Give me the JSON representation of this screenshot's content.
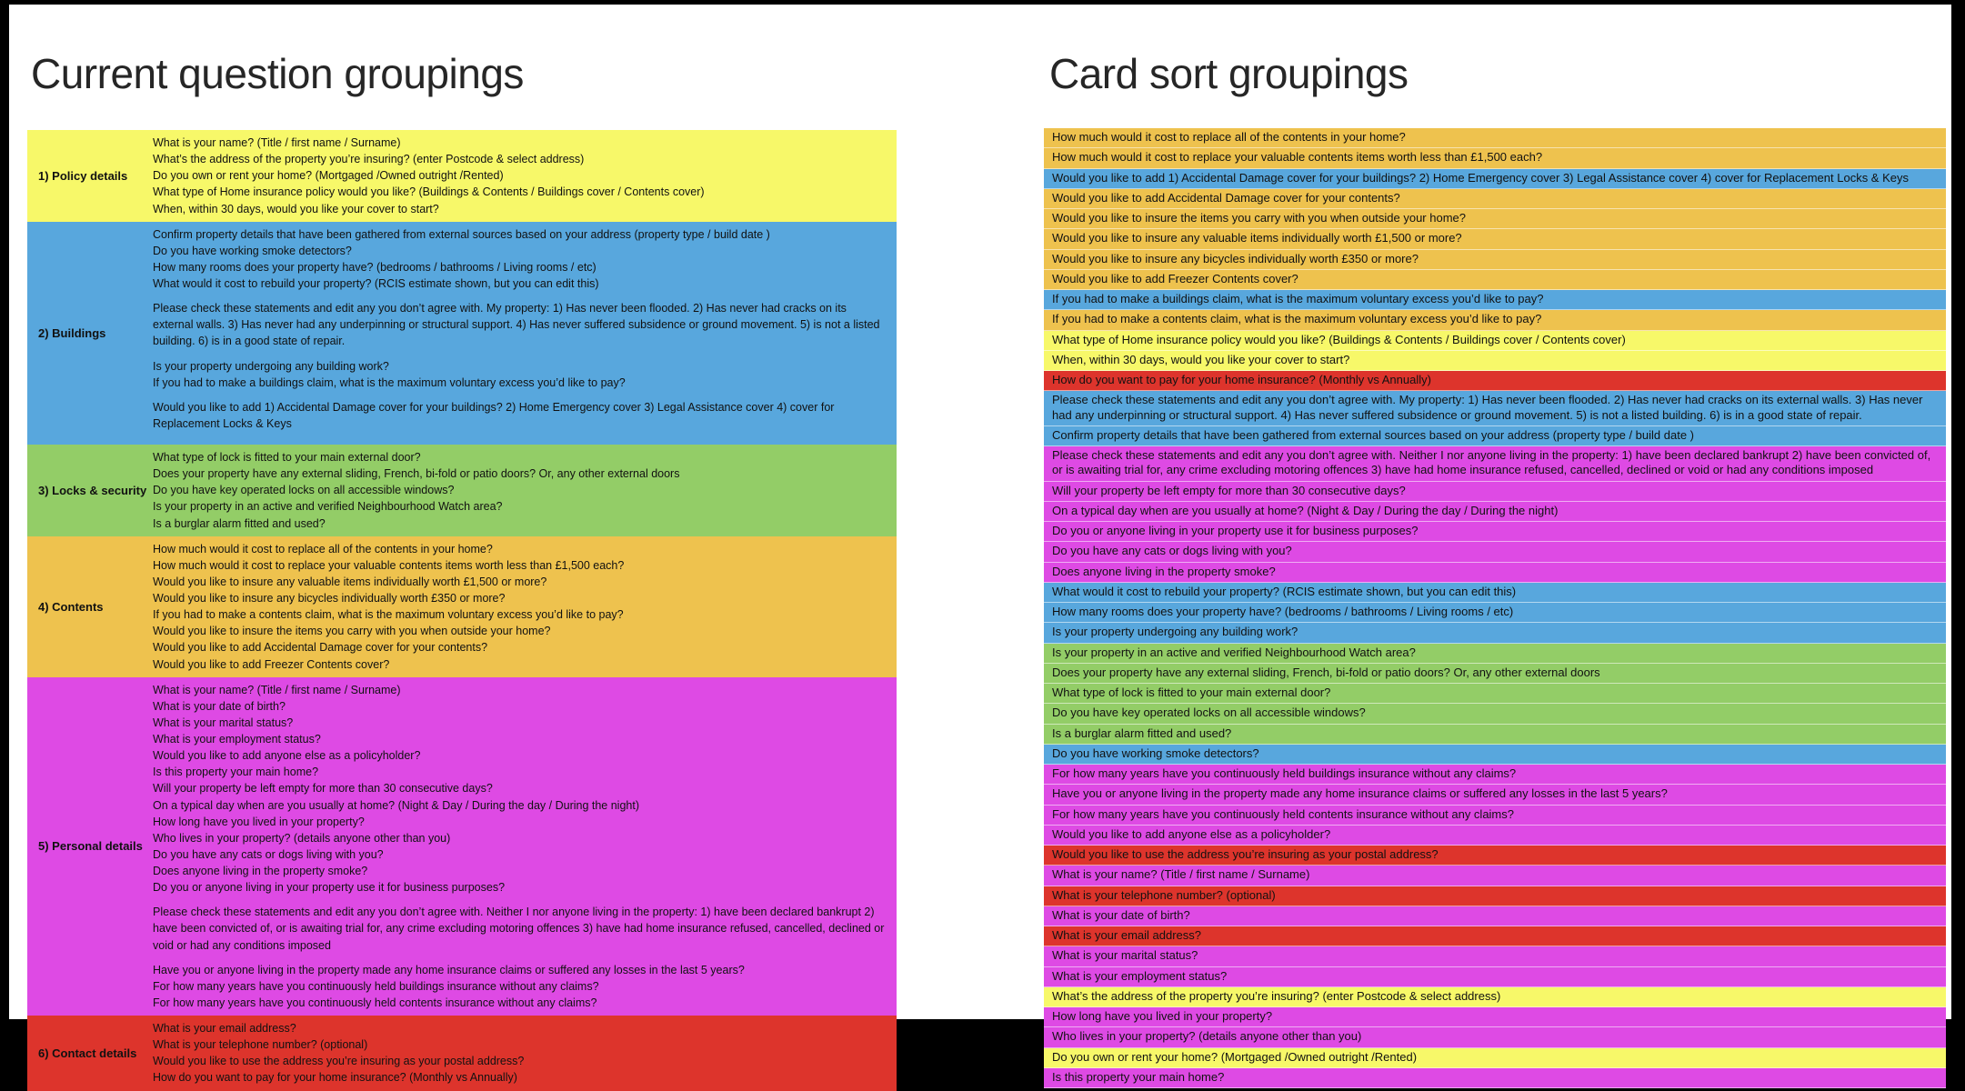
{
  "page": {
    "left_title": "Current question groupings",
    "right_title": "Card sort groupings"
  },
  "palette": {
    "yellow": "#f7f869",
    "blue": "#58a7dd",
    "green": "#93cd67",
    "orange": "#eec24e",
    "magenta": "#de4ae4",
    "red": "#dd342c"
  },
  "left_groups": [
    {
      "label": "1) Policy details",
      "color": "yellow",
      "questions": [
        "What is your name? (Title / first name / Surname)",
        "What’s the address of the property you’re insuring? (enter Postcode & select address)",
        "Do you own or rent your home? (Mortgaged /Owned outright /Rented)",
        "What type of Home insurance policy would you like? (Buildings & Contents / Buildings cover / Contents cover)",
        "When, within 30 days, would you like your cover to start?"
      ]
    },
    {
      "label": "2) Buildings",
      "color": "blue",
      "questions": [
        "Confirm property details that have been gathered from external sources based on your address (property type / build date )",
        "Do you have working smoke detectors?",
        "How many rooms does your property have? (bedrooms / bathrooms / Living rooms / etc)",
        "What would it cost to rebuild your property? (RCIS estimate shown, but you can edit this)",
        "Please check these statements and edit any you don’t agree with. My property: 1) Has never been flooded. 2) Has never had cracks on its external walls. 3) Has never had any underpinning or structural support. 4) Has never suffered subsidence or ground movement. 5) is not a listed building. 6) is in a good state of repair.",
        "Is your property undergoing any building work?",
        "If you had to make a buildings claim, what is the maximum voluntary excess you’d like to pay?",
        "Would you like to add 1) Accidental Damage cover for your buildings? 2) Home Emergency cover 3) Legal Assistance cover 4) cover for Replacement Locks & Keys"
      ]
    },
    {
      "label": "3) Locks & security",
      "color": "green",
      "questions": [
        "What type of lock is fitted to your main external door?",
        "Does your property have any external sliding, French, bi-fold or patio doors? Or, any other external doors",
        "Do you have key operated locks on all accessible windows?",
        "Is your property in an active and verified Neighbourhood Watch area?",
        "Is a burglar alarm fitted and used?"
      ]
    },
    {
      "label": "4) Contents",
      "color": "orange",
      "questions": [
        "How much would it cost to replace all of the contents in your home?",
        "How much would it cost to replace your valuable contents items worth less than £1,500 each?",
        "Would you like to insure any valuable items individually worth £1,500 or more?",
        "Would you like to insure any bicycles individually worth £350 or more?",
        "If you had to make a contents claim, what is the maximum voluntary excess you’d like to pay?",
        "Would you like to insure the items you carry with you when outside your home?",
        "Would you like to add Accidental Damage cover for your contents?",
        "Would you like to add Freezer Contents cover?"
      ]
    },
    {
      "label": "5) Personal details",
      "color": "magenta",
      "questions": [
        "What is your name? (Title / first name / Surname)",
        "What is your date of birth?",
        "What is your marital status?",
        "What is your employment status?",
        "Would you like to add anyone else as a policyholder?",
        "Is this property your main home?",
        "Will your property be left empty for more than 30 consecutive days?",
        "On a typical day when are you usually at home? (Night & Day / During the day / During the night)",
        "How long have you lived in your property?",
        "Who lives in your property? (details anyone other than you)",
        "Do you have any cats or dogs living with you?",
        "Does anyone living in the property smoke?",
        "Do you or anyone living in your property use it for business purposes?",
        "Please check these statements and edit any you don’t agree with. Neither I nor anyone living in the property: 1) have been declared bankrupt 2) have been convicted of, or is awaiting trial for, any crime excluding motoring offences 3) have had home insurance refused, cancelled, declined or void or had any conditions imposed",
        "Have you or anyone living in the property made any home insurance claims or suffered any losses in the last 5 years?",
        "For how many years have you continuously held buildings insurance without any claims?",
        "For how many years have you continuously held contents insurance without any claims?"
      ]
    },
    {
      "label": "6) Contact details",
      "color": "red",
      "questions": [
        "What is your email address?",
        "What is your telephone number? (optional)",
        "Would you like to use the address you’re insuring as your postal address?",
        "How do you want to pay for your home insurance? (Monthly vs Annually)"
      ]
    }
  ],
  "right_cards": [
    {
      "color": "orange",
      "text": "How much would it cost to replace all of the contents in your home?"
    },
    {
      "color": "orange",
      "text": "How much would it cost to replace your valuable contents items worth less than £1,500 each?"
    },
    {
      "color": "blue",
      "text": "Would you like to add 1) Accidental Damage cover for your buildings? 2) Home Emergency cover 3) Legal Assistance cover 4) cover for Replacement Locks & Keys"
    },
    {
      "color": "orange",
      "text": "Would you like to add Accidental Damage cover for your contents?"
    },
    {
      "color": "orange",
      "text": "Would you like to insure the items you carry with you when outside your home?"
    },
    {
      "color": "orange",
      "text": "Would you like to insure any valuable items individually worth £1,500 or more?"
    },
    {
      "color": "orange",
      "text": "Would you like to insure any bicycles individually worth £350 or more?"
    },
    {
      "color": "orange",
      "text": "Would you like to add Freezer Contents cover?"
    },
    {
      "color": "blue",
      "text": "If you had to make a buildings claim, what is the maximum voluntary excess you’d like to pay?"
    },
    {
      "color": "orange",
      "text": "If you had to make a contents claim, what is the maximum voluntary excess you’d like to pay?"
    },
    {
      "color": "yellow",
      "text": "What type of Home insurance policy would you like? (Buildings & Contents / Buildings cover / Contents cover)"
    },
    {
      "color": "yellow",
      "text": "When, within 30 days, would you like your cover to start?"
    },
    {
      "color": "red",
      "text": "How do you want to pay for your home insurance? (Monthly vs Annually)"
    },
    {
      "color": "blue",
      "text": "Please check these statements and edit any you don’t agree with. My property: 1) Has never been flooded. 2) Has never had cracks on its external walls. 3) Has never had any underpinning or structural support. 4) Has never suffered subsidence or ground movement. 5) is not a listed building. 6) is in a good state of repair."
    },
    {
      "color": "blue",
      "text": "Confirm property details that have been gathered from external sources based on your address (property type / build date )"
    },
    {
      "color": "magenta",
      "text": "Please check these statements and edit any you don’t agree with. Neither I nor anyone living in the property: 1) have been declared bankrupt 2) have been convicted of, or is awaiting trial for, any crime excluding motoring offences 3) have had home insurance refused, cancelled, declined or void or had any conditions imposed"
    },
    {
      "color": "magenta",
      "text": "Will your property be left empty for more than 30 consecutive days?"
    },
    {
      "color": "magenta",
      "text": "On a typical day when are you usually at home? (Night & Day / During the day / During the night)"
    },
    {
      "color": "magenta",
      "text": "Do you or anyone living in your property use it for business purposes?"
    },
    {
      "color": "magenta",
      "text": "Do you have any cats or dogs living with you?"
    },
    {
      "color": "magenta",
      "text": "Does anyone living in the property smoke?"
    },
    {
      "color": "blue",
      "text": "What would it cost to rebuild your property? (RCIS estimate shown, but you can edit this)"
    },
    {
      "color": "blue",
      "text": "How many rooms does your property have? (bedrooms / bathrooms / Living rooms / etc)"
    },
    {
      "color": "blue",
      "text": "Is your property undergoing any building work?"
    },
    {
      "color": "green",
      "text": "Is your property in an active and verified Neighbourhood Watch area?"
    },
    {
      "color": "green",
      "text": "Does your property have any external sliding, French, bi-fold or patio doors? Or, any other external doors"
    },
    {
      "color": "green",
      "text": "What type of lock is fitted to your main external door?"
    },
    {
      "color": "green",
      "text": "Do you have key operated locks on all accessible windows?"
    },
    {
      "color": "green",
      "text": "Is a burglar alarm fitted and used?"
    },
    {
      "color": "blue",
      "text": "Do you have working smoke detectors?"
    },
    {
      "color": "magenta",
      "text": "For how many years have you continuously held buildings insurance without any claims?"
    },
    {
      "color": "magenta",
      "text": "Have you or anyone living in the property made any home insurance claims or suffered any losses in the last 5 years?"
    },
    {
      "color": "magenta",
      "text": "For how many years have you continuously held contents insurance without any claims?"
    },
    {
      "color": "magenta",
      "text": "Would you like to add anyone else as a policyholder?"
    },
    {
      "color": "red",
      "text": "Would you like to use the address you’re insuring as your postal address?"
    },
    {
      "color": "magenta",
      "text": "What is your name? (Title / first name / Surname)"
    },
    {
      "color": "red",
      "text": "What is your telephone number? (optional)"
    },
    {
      "color": "magenta",
      "text": "What is your date of birth?"
    },
    {
      "color": "red",
      "text": "What is your email address?"
    },
    {
      "color": "magenta",
      "text": "What is your marital status?"
    },
    {
      "color": "magenta",
      "text": "What is your employment status?"
    },
    {
      "color": "yellow",
      "text": "What’s the address of the property you’re insuring? (enter Postcode & select address)"
    },
    {
      "color": "magenta",
      "text": "How long have you lived in your property?"
    },
    {
      "color": "magenta",
      "text": "Who lives in your property? (details anyone other than you)"
    },
    {
      "color": "yellow",
      "text": "Do you own or rent your home? (Mortgaged /Owned outright /Rented)"
    },
    {
      "color": "magenta",
      "text": "Is this property your main home?"
    }
  ]
}
